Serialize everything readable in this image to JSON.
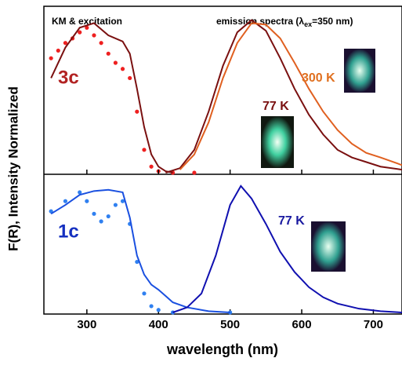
{
  "chart_data": [
    {
      "type": "line",
      "ylabel": "F(R), Intensity Normalized",
      "header_left": "KM & excitation",
      "header_right": [
        "emission spectra (λ",
        "ex",
        "=350 nm)"
      ],
      "annotations": [
        {
          "text": "3c",
          "color": "#b22222"
        },
        {
          "text": "300 K",
          "color": "#e07020"
        },
        {
          "text": "77 K",
          "color": "#7a1010"
        }
      ],
      "xlim": [
        240,
        740
      ],
      "ylim": [
        0,
        1.08
      ],
      "series": [
        {
          "marker": "dot",
          "color": "#ee2020",
          "x": [
            250,
            260,
            270,
            280,
            290,
            300,
            310,
            320,
            330,
            340,
            350,
            360,
            370,
            380,
            390,
            400,
            420,
            450
          ],
          "values": [
            0.75,
            0.8,
            0.85,
            0.88,
            0.92,
            0.95,
            0.9,
            0.85,
            0.78,
            0.72,
            0.68,
            0.62,
            0.4,
            0.15,
            0.04,
            0.01,
            0,
            0
          ]
        },
        {
          "marker": "line",
          "color": "#7a1010",
          "x": [
            250,
            270,
            290,
            310,
            330,
            350,
            360,
            370,
            380,
            390,
            400,
            410,
            420
          ],
          "values": [
            0.62,
            0.82,
            0.95,
            0.98,
            0.9,
            0.86,
            0.78,
            0.55,
            0.3,
            0.12,
            0.04,
            0.01,
            0
          ]
        },
        {
          "marker": "line",
          "color": "#7a1010",
          "x": [
            410,
            430,
            450,
            470,
            490,
            510,
            530,
            550,
            570,
            590,
            610,
            630,
            650,
            670,
            690,
            710,
            740
          ],
          "values": [
            0,
            0.03,
            0.15,
            0.4,
            0.7,
            0.92,
            1.0,
            0.93,
            0.75,
            0.55,
            0.38,
            0.25,
            0.15,
            0.1,
            0.07,
            0.04,
            0.02
          ]
        },
        {
          "marker": "line",
          "color": "#e06020",
          "x": [
            430,
            450,
            470,
            490,
            510,
            530,
            550,
            570,
            590,
            610,
            630,
            650,
            670,
            690,
            710,
            740
          ],
          "values": [
            0.02,
            0.12,
            0.33,
            0.62,
            0.85,
            0.98,
            0.97,
            0.88,
            0.72,
            0.55,
            0.4,
            0.28,
            0.19,
            0.13,
            0.1,
            0.05
          ]
        }
      ]
    },
    {
      "type": "line",
      "xlabel": "wavelength (nm)",
      "annotations": [
        {
          "text": "1c",
          "color": "#1530c0"
        },
        {
          "text": "77 K",
          "color": "#1a1aa0"
        }
      ],
      "xlim": [
        240,
        740
      ],
      "ylim": [
        0,
        1.08
      ],
      "xticks": [
        300,
        400,
        500,
        600,
        700
      ],
      "series": [
        {
          "marker": "dot",
          "color": "#3080f0",
          "x": [
            250,
            270,
            290,
            300,
            310,
            320,
            330,
            340,
            350,
            360,
            370,
            380,
            390,
            400,
            420,
            500
          ],
          "values": [
            0.8,
            0.88,
            0.95,
            0.88,
            0.78,
            0.72,
            0.76,
            0.85,
            0.88,
            0.7,
            0.4,
            0.15,
            0.05,
            0.02,
            0,
            0
          ]
        },
        {
          "marker": "line",
          "color": "#1a50e0",
          "x": [
            250,
            270,
            290,
            310,
            330,
            350,
            360,
            370,
            380,
            390,
            400,
            410,
            420,
            440,
            470,
            500
          ],
          "values": [
            0.78,
            0.85,
            0.93,
            0.96,
            0.97,
            0.95,
            0.75,
            0.45,
            0.3,
            0.22,
            0.18,
            0.13,
            0.08,
            0.04,
            0.01,
            0
          ]
        },
        {
          "marker": "line",
          "color": "#1010b0",
          "x": [
            420,
            440,
            460,
            480,
            500,
            515,
            530,
            550,
            570,
            590,
            610,
            630,
            650,
            680,
            710,
            740
          ],
          "values": [
            0,
            0.04,
            0.15,
            0.45,
            0.85,
            1.0,
            0.9,
            0.7,
            0.48,
            0.32,
            0.2,
            0.12,
            0.07,
            0.03,
            0.01,
            0
          ]
        }
      ]
    }
  ]
}
